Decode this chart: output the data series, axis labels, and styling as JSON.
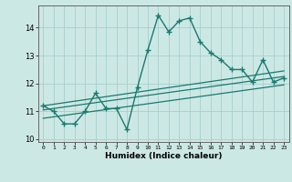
{
  "title": "",
  "xlabel": "Humidex (Indice chaleur)",
  "bg_color": "#cce8e5",
  "line_color": "#1a7a6e",
  "grid_color": "#a8cece",
  "xlim": [
    -0.5,
    23.5
  ],
  "ylim": [
    9.9,
    14.8
  ],
  "yticks": [
    10,
    11,
    12,
    13,
    14
  ],
  "xticks": [
    0,
    1,
    2,
    3,
    4,
    5,
    6,
    7,
    8,
    9,
    10,
    11,
    12,
    13,
    14,
    15,
    16,
    17,
    18,
    19,
    20,
    21,
    22,
    23
  ],
  "main_x": [
    0,
    1,
    2,
    3,
    4,
    5,
    6,
    7,
    8,
    9,
    10,
    11,
    12,
    13,
    14,
    15,
    16,
    17,
    18,
    19,
    20,
    21,
    22,
    23
  ],
  "main_y": [
    11.2,
    11.0,
    10.55,
    10.55,
    11.0,
    11.65,
    11.1,
    11.1,
    10.35,
    11.85,
    13.2,
    14.45,
    13.85,
    14.25,
    14.35,
    13.5,
    13.1,
    12.85,
    12.5,
    12.5,
    12.05,
    12.85,
    12.05,
    12.2
  ],
  "trend1_x": [
    0,
    23
  ],
  "trend1_y": [
    11.05,
    12.25
  ],
  "trend2_x": [
    0,
    23
  ],
  "trend2_y": [
    10.75,
    11.95
  ],
  "trend3_x": [
    0,
    23
  ],
  "trend3_y": [
    11.2,
    12.45
  ]
}
